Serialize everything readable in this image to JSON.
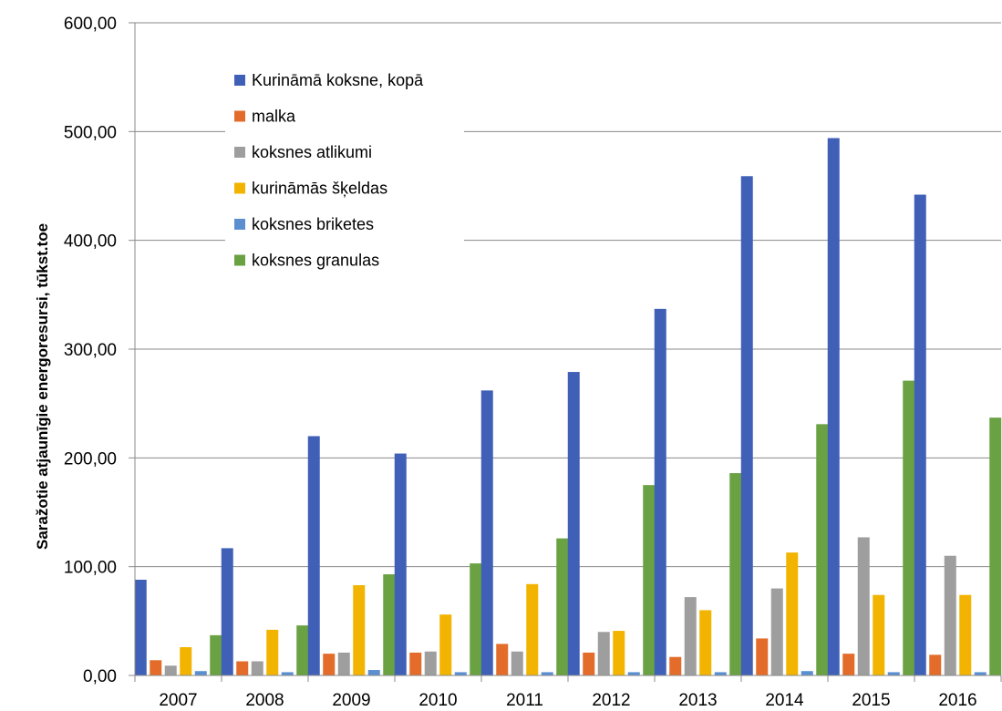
{
  "chart_data": {
    "type": "bar",
    "title": "",
    "xlabel": "",
    "ylabel": "Saražotie atjaunīgie energoresursi, tūkst.toe",
    "ylim": [
      0,
      600
    ],
    "yticks": [
      "0,00",
      "100,00",
      "200,00",
      "300,00",
      "400,00",
      "500,00",
      "600,00"
    ],
    "grid": true,
    "legend_position": "top-left",
    "categories": [
      "2007",
      "2008",
      "2009",
      "2010",
      "2011",
      "2012",
      "2013",
      "2014",
      "2015",
      "2016"
    ],
    "series": [
      {
        "name": "Kurināmā koksne, kopā",
        "color": "#4060b8",
        "values": [
          88,
          117,
          220,
          204,
          262,
          279,
          337,
          459,
          494,
          442
        ]
      },
      {
        "name": "malka",
        "color": "#e36c2a",
        "values": [
          14,
          13,
          20,
          21,
          29,
          21,
          17,
          34,
          20,
          19
        ]
      },
      {
        "name": "koksnes atlikumi",
        "color": "#9e9e9e",
        "values": [
          9,
          13,
          21,
          22,
          22,
          40,
          72,
          80,
          127,
          110
        ]
      },
      {
        "name": "kurināmās šķeldas",
        "color": "#f2b400",
        "values": [
          26,
          42,
          83,
          56,
          84,
          41,
          60,
          113,
          74,
          74
        ]
      },
      {
        "name": "koksnes briketes",
        "color": "#5b8fd0",
        "values": [
          4,
          3,
          5,
          3,
          3,
          3,
          3,
          4,
          3,
          3
        ]
      },
      {
        "name": "koksnes granulas",
        "color": "#6aa243",
        "values": [
          37,
          46,
          93,
          103,
          126,
          175,
          186,
          231,
          271,
          237
        ]
      }
    ]
  }
}
